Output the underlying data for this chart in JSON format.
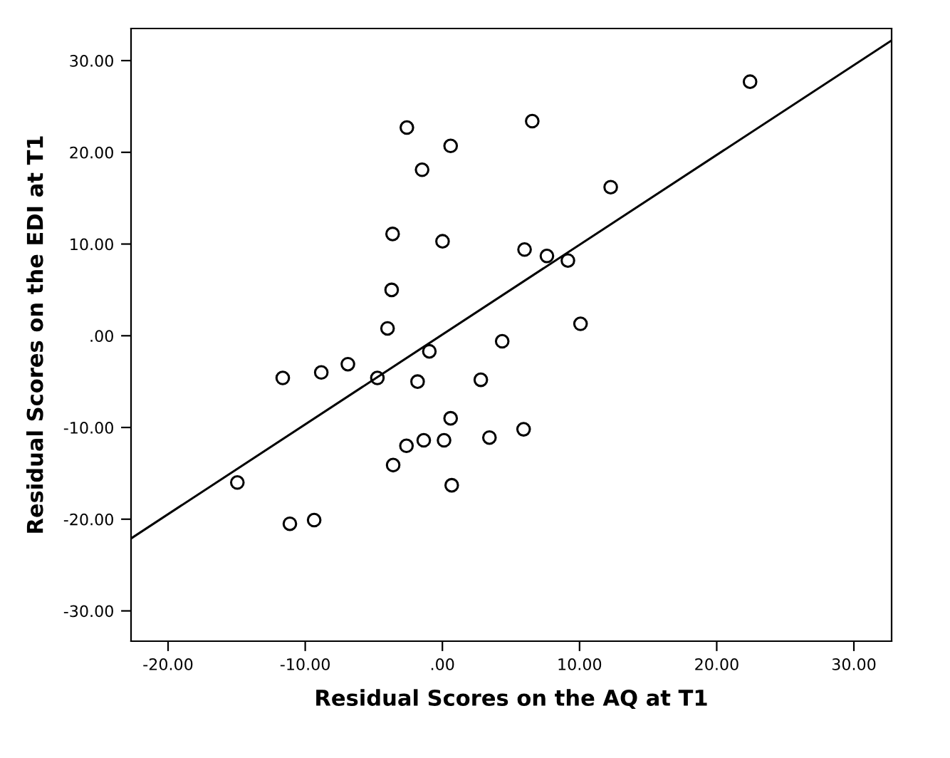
{
  "chart_data": {
    "type": "scatter",
    "xlabel": "Residual Scores on the AQ at T1",
    "ylabel": "Residual Scores on the EDI at T1",
    "xlim": [
      -22.7,
      32.75
    ],
    "ylim": [
      -33.3,
      33.5
    ],
    "xticks": [
      {
        "value": -20,
        "label": "-20.00"
      },
      {
        "value": -10,
        "label": "-10.00"
      },
      {
        "value": 0,
        "label": ".00"
      },
      {
        "value": 10,
        "label": "10.00"
      },
      {
        "value": 20,
        "label": "20.00"
      },
      {
        "value": 30,
        "label": "30.00"
      }
    ],
    "yticks": [
      {
        "value": -30,
        "label": "-30.00"
      },
      {
        "value": -20,
        "label": "-20.00"
      },
      {
        "value": -10,
        "label": "-10.00"
      },
      {
        "value": 0,
        "label": ".00"
      },
      {
        "value": 10,
        "label": "10.00"
      },
      {
        "value": 20,
        "label": "20.00"
      },
      {
        "value": 30,
        "label": "30.00"
      }
    ],
    "grid": false,
    "series": [
      {
        "marker": "circle",
        "color": "#000000",
        "x": [
          22.43,
          -2.59,
          6.55,
          0.6,
          -1.48,
          12.27,
          -3.63,
          0.01,
          5.99,
          7.62,
          9.15,
          -3.7,
          -4.0,
          10.07,
          4.36,
          -0.95,
          -11.64,
          -8.83,
          -6.89,
          -4.74,
          -1.81,
          2.8,
          0.6,
          -1.36,
          0.12,
          -2.62,
          3.43,
          5.92,
          -3.59,
          0.68,
          -14.95,
          -11.12,
          -9.35
        ],
        "values": [
          27.7,
          22.7,
          23.4,
          20.7,
          18.1,
          16.2,
          11.1,
          10.3,
          9.4,
          8.7,
          8.2,
          5.0,
          0.8,
          1.3,
          -0.6,
          -1.7,
          -4.6,
          -4.0,
          -3.1,
          -4.6,
          -5.0,
          -4.8,
          -9.0,
          -11.4,
          -11.4,
          -12.0,
          -11.1,
          -10.2,
          -14.1,
          -16.3,
          -16.0,
          -20.5,
          -20.1
        ]
      },
      {
        "type": "line",
        "color": "#000000",
        "x": [
          -22.7,
          32.75
        ],
        "values": [
          -22.1,
          32.2
        ]
      }
    ]
  }
}
